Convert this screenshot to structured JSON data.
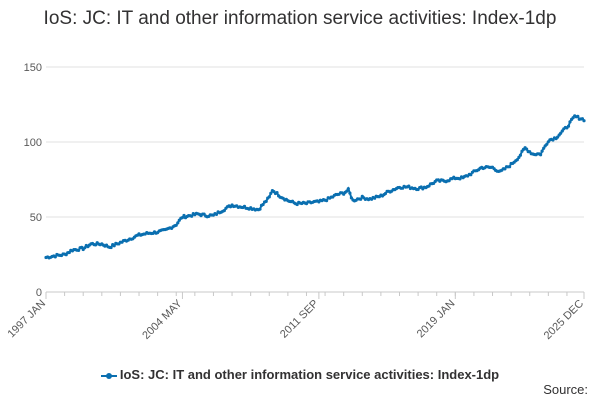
{
  "title": "IoS: JC: IT and other information service activities: Index-1dp",
  "source_label": "Source:",
  "chart_data": {
    "type": "line",
    "title": "IoS: JC: IT and other information service activities: Index-1dp",
    "xlabel": "",
    "ylabel": "",
    "x_tick_labels": [
      "1997 JAN",
      "2004 MAY",
      "2011 SEP",
      "2019 JAN",
      "2025 DEC"
    ],
    "x_range": [
      "1997 JAN",
      "2025 DEC"
    ],
    "y_ticks": [
      0,
      50,
      100,
      150
    ],
    "ylim": [
      0,
      150
    ],
    "grid": true,
    "legend_position": "bottom",
    "series": [
      {
        "name": "IoS: JC: IT and other information service activities: Index-1dp",
        "color": "#0a6fb0",
        "points": [
          [
            "1997-01",
            23
          ],
          [
            "1997-06",
            24
          ],
          [
            "1998-01",
            25
          ],
          [
            "1998-06",
            28
          ],
          [
            "1999-01",
            29
          ],
          [
            "1999-06",
            32
          ],
          [
            "2000-01",
            32
          ],
          [
            "2000-06",
            30
          ],
          [
            "2001-01",
            33
          ],
          [
            "2001-06",
            35
          ],
          [
            "2002-01",
            38
          ],
          [
            "2002-06",
            39
          ],
          [
            "2003-01",
            40
          ],
          [
            "2003-06",
            41
          ],
          [
            "2004-01",
            45
          ],
          [
            "2004-05",
            50
          ],
          [
            "2004-10",
            51
          ],
          [
            "2005-03",
            52
          ],
          [
            "2005-08",
            51
          ],
          [
            "2006-01",
            51
          ],
          [
            "2006-06",
            54
          ],
          [
            "2007-01",
            58
          ],
          [
            "2007-06",
            57
          ],
          [
            "2008-01",
            56
          ],
          [
            "2008-06",
            55
          ],
          [
            "2009-01",
            63
          ],
          [
            "2009-03",
            68
          ],
          [
            "2009-08",
            64
          ],
          [
            "2010-01",
            61
          ],
          [
            "2010-06",
            59
          ],
          [
            "2011-01",
            59
          ],
          [
            "2011-06",
            60
          ],
          [
            "2011-09",
            60
          ],
          [
            "2012-03",
            62
          ],
          [
            "2012-09",
            65
          ],
          [
            "2013-01",
            66
          ],
          [
            "2013-04",
            68
          ],
          [
            "2013-07",
            61
          ],
          [
            "2014-01",
            63
          ],
          [
            "2014-06",
            62
          ],
          [
            "2015-01",
            64
          ],
          [
            "2015-06",
            67
          ],
          [
            "2016-01",
            70
          ],
          [
            "2016-06",
            70
          ],
          [
            "2017-01",
            69
          ],
          [
            "2017-06",
            70
          ],
          [
            "2018-01",
            74
          ],
          [
            "2018-06",
            74
          ],
          [
            "2019-01",
            76
          ],
          [
            "2019-06",
            76
          ],
          [
            "2020-01",
            80
          ],
          [
            "2020-06",
            83
          ],
          [
            "2021-01",
            83
          ],
          [
            "2021-06",
            80
          ],
          [
            "2022-01",
            85
          ],
          [
            "2022-06",
            90
          ],
          [
            "2022-10",
            96
          ],
          [
            "2023-03",
            92
          ],
          [
            "2023-08",
            92
          ],
          [
            "2024-01",
            101
          ],
          [
            "2024-06",
            103
          ],
          [
            "2025-01",
            110
          ],
          [
            "2025-06",
            117
          ],
          [
            "2025-12",
            115
          ]
        ]
      }
    ]
  }
}
